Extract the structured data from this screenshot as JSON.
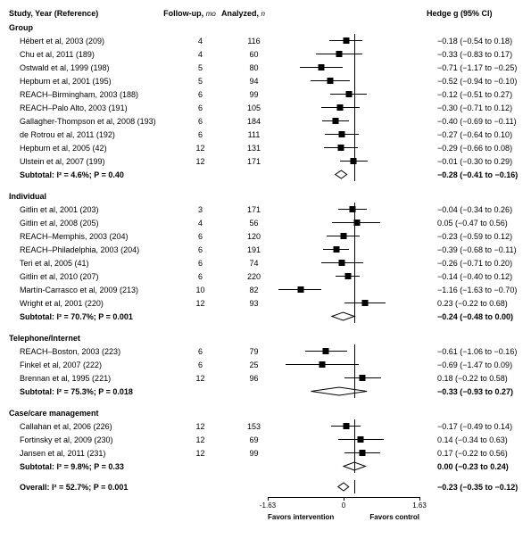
{
  "meta": {
    "colHeaders": {
      "study": "Study, Year (Reference)",
      "fu": "Follow-up,",
      "fuUnit": "mo",
      "n": "Analyzed,",
      "nUnit": "n",
      "ci": "Hedge g (95% CI)"
    },
    "plot": {
      "xmin": -1.63,
      "xmax": 1.63,
      "zero": 0,
      "ticks": [
        -1.63,
        0,
        1.63
      ],
      "leftLabel": "Favors intervention",
      "rightLabel": "Favors control",
      "widthPx": 170
    }
  },
  "sections": [
    {
      "title": "Group",
      "rows": [
        {
          "study": "Hébert et al, 2003 (209)",
          "fu": "4",
          "n": "116",
          "g": -0.18,
          "lo": -0.54,
          "hi": 0.18,
          "ci": "−0.18 (−0.54 to 0.18)"
        },
        {
          "study": "Chu et al, 2011 (189)",
          "fu": "4",
          "n": "60",
          "g": -0.33,
          "lo": -0.83,
          "hi": 0.17,
          "ci": "−0.33 (−0.83 to 0.17)"
        },
        {
          "study": "Ostwald et al, 1999 (198)",
          "fu": "5",
          "n": "80",
          "g": -0.71,
          "lo": -1.17,
          "hi": -0.25,
          "ci": "−0.71 (−1.17 to −0.25)"
        },
        {
          "study": "Hepburn et al, 2001 (195)",
          "fu": "5",
          "n": "94",
          "g": -0.52,
          "lo": -0.94,
          "hi": -0.1,
          "ci": "−0.52 (−0.94 to −0.10)"
        },
        {
          "study": "REACH–Birmingham, 2003 (188)",
          "fu": "6",
          "n": "99",
          "g": -0.12,
          "lo": -0.51,
          "hi": 0.27,
          "ci": "−0.12 (−0.51 to 0.27)"
        },
        {
          "study": "REACH–Palo Alto, 2003 (191)",
          "fu": "6",
          "n": "105",
          "g": -0.3,
          "lo": -0.71,
          "hi": 0.12,
          "ci": "−0.30 (−0.71 to 0.12)"
        },
        {
          "study": "Gallagher-Thompson et al, 2008 (193)",
          "fu": "6",
          "n": "184",
          "g": -0.4,
          "lo": -0.69,
          "hi": -0.11,
          "ci": "−0.40 (−0.69 to −0.11)"
        },
        {
          "study": "de Rotrou et al, 2011 (192)",
          "fu": "6",
          "n": "111",
          "g": -0.27,
          "lo": -0.64,
          "hi": 0.1,
          "ci": "−0.27 (−0.64 to 0.10)"
        },
        {
          "study": "Hepburn et al, 2005 (42)",
          "fu": "12",
          "n": "131",
          "g": -0.29,
          "lo": -0.66,
          "hi": 0.08,
          "ci": "−0.29 (−0.66 to 0.08)"
        },
        {
          "study": "Ulstein et al, 2007 (199)",
          "fu": "12",
          "n": "171",
          "g": -0.01,
          "lo": -0.3,
          "hi": 0.29,
          "ci": "−0.01 (−0.30 to 0.29)"
        }
      ],
      "subtotal": {
        "label": "Subtotal: I² = 4.6%; P = 0.40",
        "g": -0.28,
        "lo": -0.41,
        "hi": -0.16,
        "ci": "−0.28 (−0.41 to −0.16)"
      }
    },
    {
      "title": "Individual",
      "rows": [
        {
          "study": "Gitlin et al, 2001 (203)",
          "fu": "3",
          "n": "171",
          "g": -0.04,
          "lo": -0.34,
          "hi": 0.26,
          "ci": "−0.04 (−0.34 to 0.26)"
        },
        {
          "study": "Gitlin et al, 2008 (205)",
          "fu": "4",
          "n": "56",
          "g": 0.05,
          "lo": -0.47,
          "hi": 0.56,
          "ci": "0.05 (−0.47 to 0.56)"
        },
        {
          "study": "REACH–Memphis, 2003 (204)",
          "fu": "6",
          "n": "120",
          "g": -0.23,
          "lo": -0.59,
          "hi": 0.12,
          "ci": "−0.23 (−0.59 to 0.12)"
        },
        {
          "study": "REACH–Philadelphia, 2003 (204)",
          "fu": "6",
          "n": "191",
          "g": -0.39,
          "lo": -0.68,
          "hi": -0.11,
          "ci": "−0.39 (−0.68 to −0.11)"
        },
        {
          "study": "Teri et al, 2005 (41)",
          "fu": "6",
          "n": "74",
          "g": -0.26,
          "lo": -0.71,
          "hi": 0.2,
          "ci": "−0.26 (−0.71 to 0.20)"
        },
        {
          "study": "Gitlin et al, 2010 (207)",
          "fu": "6",
          "n": "220",
          "g": -0.14,
          "lo": -0.4,
          "hi": 0.12,
          "ci": "−0.14 (−0.40 to 0.12)"
        },
        {
          "study": "Martín-Carrasco et al, 2009 (213)",
          "fu": "10",
          "n": "82",
          "g": -1.16,
          "lo": -1.63,
          "hi": -0.7,
          "ci": "−1.16 (−1.63 to −0.70)"
        },
        {
          "study": "Wright et al, 2001 (220)",
          "fu": "12",
          "n": "93",
          "g": 0.23,
          "lo": -0.22,
          "hi": 0.68,
          "ci": "0.23 (−0.22 to 0.68)"
        }
      ],
      "subtotal": {
        "label": "Subtotal: I² = 70.7%; P = 0.001",
        "g": -0.24,
        "lo": -0.48,
        "hi": 0.0,
        "ci": "−0.24 (−0.48 to 0.00)"
      }
    },
    {
      "title": "Telephone/Internet",
      "rows": [
        {
          "study": "REACH–Boston, 2003 (223)",
          "fu": "6",
          "n": "79",
          "g": -0.61,
          "lo": -1.06,
          "hi": -0.16,
          "ci": "−0.61 (−1.06 to −0.16)"
        },
        {
          "study": "Finkel et al, 2007 (222)",
          "fu": "6",
          "n": "25",
          "g": -0.69,
          "lo": -1.47,
          "hi": 0.09,
          "ci": "−0.69 (−1.47 to 0.09)"
        },
        {
          "study": "Brennan et al, 1995 (221)",
          "fu": "12",
          "n": "96",
          "g": 0.18,
          "lo": -0.22,
          "hi": 0.58,
          "ci": "0.18 (−0.22 to 0.58)"
        }
      ],
      "subtotal": {
        "label": "Subtotal: I² = 75.3%; P = 0.018",
        "g": -0.33,
        "lo": -0.93,
        "hi": 0.27,
        "ci": "−0.33 (−0.93 to 0.27)"
      }
    },
    {
      "title": "Case/care management",
      "rows": [
        {
          "study": "Callahan et al, 2006 (226)",
          "fu": "12",
          "n": "153",
          "g": -0.17,
          "lo": -0.49,
          "hi": 0.14,
          "ci": "−0.17 (−0.49 to 0.14)"
        },
        {
          "study": "Fortinsky et al, 2009 (230)",
          "fu": "12",
          "n": "69",
          "g": 0.14,
          "lo": -0.34,
          "hi": 0.63,
          "ci": "0.14 (−0.34 to 0.63)"
        },
        {
          "study": "Jansen et al, 2011 (231)",
          "fu": "12",
          "n": "99",
          "g": 0.17,
          "lo": -0.22,
          "hi": 0.56,
          "ci": "0.17 (−0.22 to 0.56)"
        }
      ],
      "subtotal": {
        "label": "Subtotal: I² = 9.8%; P = 0.33",
        "g": 0.0,
        "lo": -0.23,
        "hi": 0.24,
        "ci": "0.00 (−0.23 to 0.24)"
      }
    }
  ],
  "overall": {
    "label": "Overall: I² = 52.7%; P = 0.001",
    "g": -0.23,
    "lo": -0.35,
    "hi": -0.12,
    "ci": "−0.23 (−0.35 to −0.12)"
  }
}
